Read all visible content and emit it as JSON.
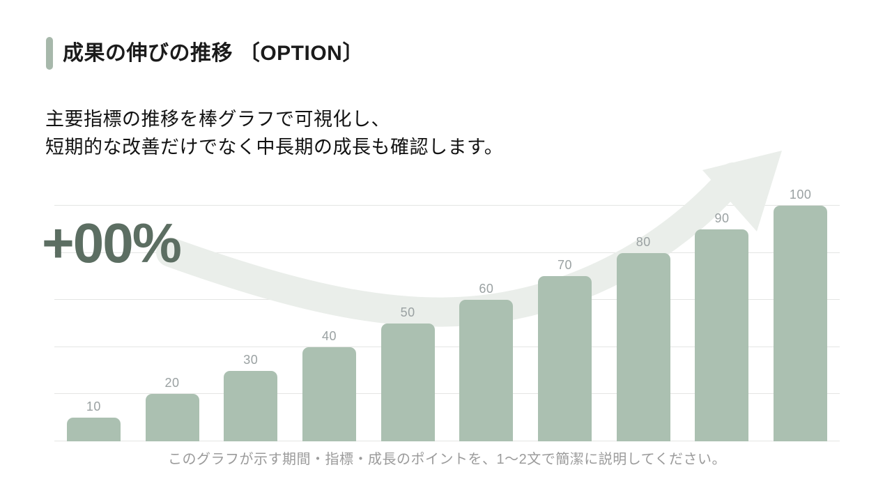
{
  "slide": {
    "title": "成果の伸びの推移 〔OPTION〕",
    "body_lines": [
      "主要指標の推移を棒グラフで可視化し、",
      "短期的な改善だけでなく中長期の成長も確認します。"
    ],
    "growth_badge": "+00%",
    "caption": "このグラフが示す期間・指標・成長のポイントを、1〜2文で簡潔に説明してください。"
  },
  "colors": {
    "accent": "#a7b8ab",
    "bar": "#abc0b1",
    "bar_label": "#9aa1a2",
    "gridline": "#e4e5e3",
    "big_number": "#5c6e62",
    "caption": "#9b9b9b",
    "arrow_watermark": "#eaeeea"
  },
  "chart_data": {
    "type": "bar",
    "title": "",
    "xlabel": "",
    "ylabel": "",
    "values": [
      10,
      20,
      30,
      40,
      50,
      60,
      70,
      80,
      90,
      100
    ],
    "value_labels": [
      "10",
      "20",
      "30",
      "40",
      "50",
      "60",
      "70",
      "80",
      "90",
      "100"
    ],
    "ylim": [
      0,
      100
    ],
    "gridline_values": [
      0,
      20,
      40,
      60,
      80,
      100
    ],
    "grid": true,
    "legend": false,
    "annotations": [
      "+00%"
    ]
  }
}
